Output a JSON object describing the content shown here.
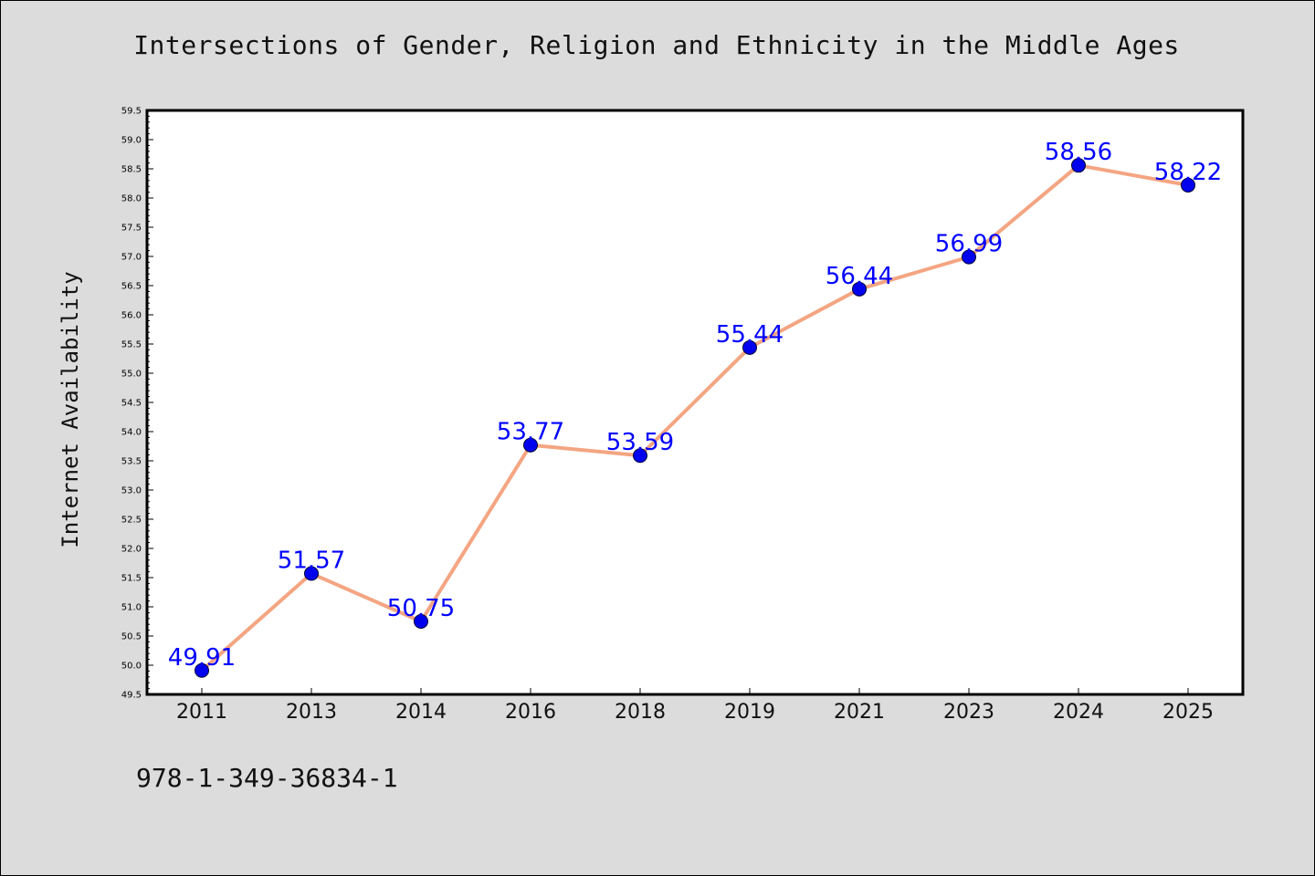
{
  "chart_data": {
    "type": "line",
    "title": "Intersections of Gender, Religion and Ethnicity in the Middle Ages",
    "xlabel": "",
    "ylabel": "Internet Availability",
    "categories": [
      "2011",
      "2013",
      "2014",
      "2016",
      "2018",
      "2019",
      "2021",
      "2023",
      "2024",
      "2025"
    ],
    "series": [
      {
        "values": [
          49.91,
          51.57,
          50.75,
          53.77,
          53.59,
          55.44,
          56.44,
          56.99,
          58.56,
          58.22
        ],
        "data_labels": [
          "49.91",
          "51.57",
          "50.75",
          "53.77",
          "53.59",
          "55.44",
          "56.44",
          "56.99",
          "58.56",
          "58.22"
        ]
      }
    ],
    "ylim": [
      49.5,
      59.5
    ],
    "yticks": [
      "49.5",
      "50.0",
      "50.5",
      "51.0",
      "51.5",
      "52.0",
      "52.5",
      "53.0",
      "53.5",
      "54.0",
      "54.5",
      "55.0",
      "55.5",
      "56.0",
      "56.5",
      "57.0",
      "57.5",
      "58.0",
      "58.5",
      "59.0",
      "59.5"
    ],
    "grid": false,
    "legend": "none",
    "line_color": "#f4a582",
    "marker_color": "#0000ee",
    "label_color": "#0000ff"
  },
  "footer": {
    "isbn": "978-1-349-36834-1"
  }
}
